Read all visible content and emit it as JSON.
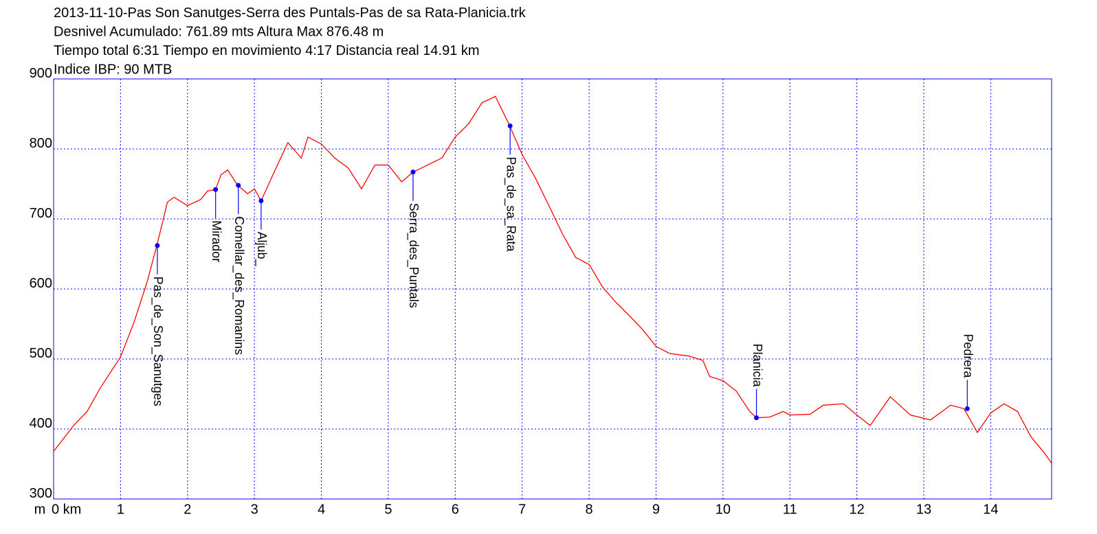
{
  "chart_data": {
    "type": "line",
    "title_lines": [
      "2013-11-10-Pas Son Sanutges-Serra des Puntals-Pas de sa Rata-Planicia.trk",
      "Desnivel Acumulado: 761.89 mts  Altura Max 876.48 m",
      "Tiempo total 6:31 Tiempo en movimiento 4:17 Distancia real 14.91 km",
      "Indice IBP: 90 MTB"
    ],
    "y_label": "m",
    "x": [
      0,
      0.3,
      0.5,
      0.7,
      1.0,
      1.2,
      1.4,
      1.55,
      1.7,
      1.8,
      2.0,
      2.2,
      2.3,
      2.42,
      2.5,
      2.6,
      2.75,
      2.9,
      3.0,
      3.1,
      3.3,
      3.5,
      3.7,
      3.8,
      4.0,
      4.2,
      4.4,
      4.6,
      4.8,
      5.0,
      5.2,
      5.37,
      5.5,
      5.8,
      6.0,
      6.2,
      6.4,
      6.6,
      6.8,
      7.0,
      7.2,
      7.4,
      7.6,
      7.8,
      8.0,
      8.2,
      8.4,
      8.6,
      8.8,
      9.0,
      9.2,
      9.5,
      9.7,
      9.8,
      10.0,
      10.2,
      10.4,
      10.5,
      10.7,
      10.9,
      11.0,
      11.3,
      11.5,
      11.8,
      12.0,
      12.2,
      12.5,
      12.8,
      13.1,
      13.4,
      13.6,
      13.8,
      14.0,
      14.2,
      14.4,
      14.6,
      14.8,
      14.91
    ],
    "series": [
      {
        "color": "#ff0000",
        "values": [
          368,
          405,
          425,
          459,
          503,
          552,
          611,
          665,
          724,
          731,
          719,
          728,
          740,
          742,
          763,
          770,
          748,
          736,
          743,
          726,
          768,
          809,
          787,
          817,
          807,
          787,
          773,
          743,
          777,
          777,
          753,
          767,
          773,
          787,
          817,
          836,
          866,
          875,
          836,
          792,
          758,
          719,
          679,
          645,
          635,
          603,
          581,
          562,
          542,
          518,
          508,
          504,
          498,
          475,
          469,
          454,
          425,
          416,
          417,
          425,
          420,
          421,
          434,
          436,
          420,
          405,
          446,
          420,
          413,
          434,
          429,
          395,
          423,
          436,
          425,
          389,
          366,
          351
        ]
      }
    ],
    "waypoints": [
      {
        "name": "Pas_de_Son_Sanutges",
        "x": 1.55,
        "elevation": 662
      },
      {
        "name": "Mirador",
        "x": 2.42,
        "elevation": 742
      },
      {
        "name": "Comellar_des_Romanins",
        "x": 2.76,
        "elevation": 748
      },
      {
        "name": "Aljub_",
        "x": 3.1,
        "elevation": 726
      },
      {
        "name": "Serra_des_Puntals",
        "x": 5.37,
        "elevation": 767
      },
      {
        "name": "Pas_de_sa_Rata",
        "x": 6.82,
        "elevation": 833
      },
      {
        "name": "Planicia",
        "x": 10.5,
        "elevation": 416
      },
      {
        "name": "Pedrera",
        "x": 13.65,
        "elevation": 429
      }
    ],
    "waypoint_color": "#0000ff",
    "xlim": [
      0,
      14.91
    ],
    "xticks": [
      {
        "value": 0,
        "label": "0 km"
      },
      1,
      2,
      3,
      4,
      5,
      6,
      7,
      8,
      9,
      10,
      11,
      12,
      13,
      14
    ],
    "ylim": [
      300,
      900
    ],
    "yticks": [
      300,
      400,
      500,
      600,
      700,
      800,
      900
    ],
    "grid": true,
    "grid_color": "#0000ff"
  }
}
